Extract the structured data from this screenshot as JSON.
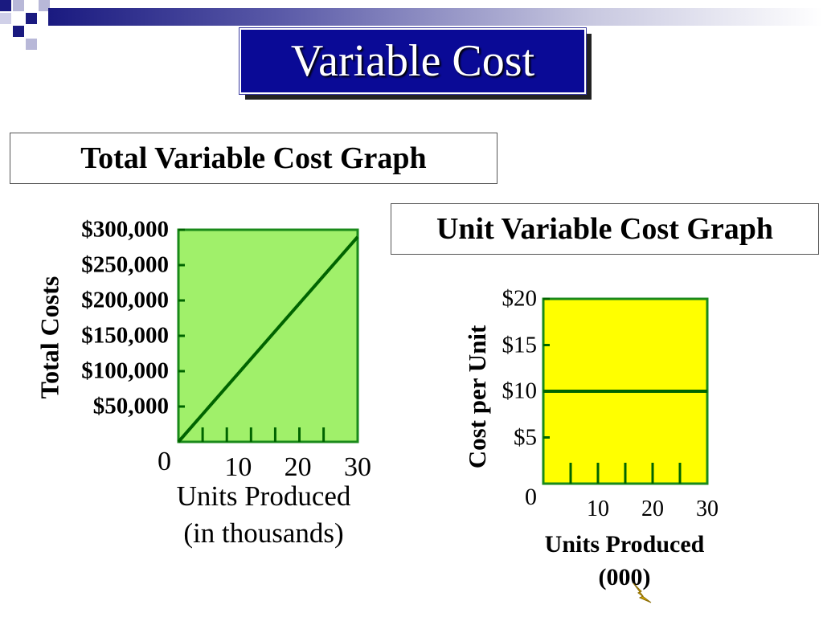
{
  "slide_title": "Variable Cost",
  "colors": {
    "title_bg": "#0a0a96",
    "total_plot_bg": "#a0f06a",
    "unit_plot_bg": "#ffff00",
    "line": "#006400",
    "frame": "#1a8a1a"
  },
  "chart_data": [
    {
      "type": "line",
      "title": "Total Variable Cost Graph",
      "ylabel": "Total Costs",
      "xlabel_line1": "Units Produced",
      "xlabel_line2": "(in thousands)",
      "y_ticks": [
        "$50,000",
        "$100,000",
        "$150,000",
        "$200,000",
        "$250,000",
        "$300,000"
      ],
      "y_tick_values": [
        50000,
        100000,
        150000,
        200000,
        250000,
        300000
      ],
      "x_ticks": [
        "10",
        "20",
        "30"
      ],
      "x_tick_values": [
        10,
        20,
        30
      ],
      "origin_label": "0",
      "xlim": [
        0,
        30
      ],
      "ylim": [
        0,
        300000
      ],
      "series": [
        {
          "x": [
            0,
            30
          ],
          "y": [
            0,
            290000
          ]
        }
      ]
    },
    {
      "type": "line",
      "title": "Unit Variable Cost Graph",
      "ylabel": "Cost per Unit",
      "xlabel_line1": "Units Produced",
      "xlabel_line2": "(000)",
      "y_ticks": [
        "$5",
        "$10",
        "$15",
        "$20"
      ],
      "y_tick_values": [
        5,
        10,
        15,
        20
      ],
      "x_ticks": [
        "10",
        "20",
        "30"
      ],
      "x_tick_values": [
        10,
        20,
        30
      ],
      "origin_label": "0",
      "xlim": [
        0,
        30
      ],
      "ylim": [
        0,
        20
      ],
      "series": [
        {
          "x": [
            0,
            30
          ],
          "y": [
            10,
            10
          ]
        }
      ]
    }
  ]
}
